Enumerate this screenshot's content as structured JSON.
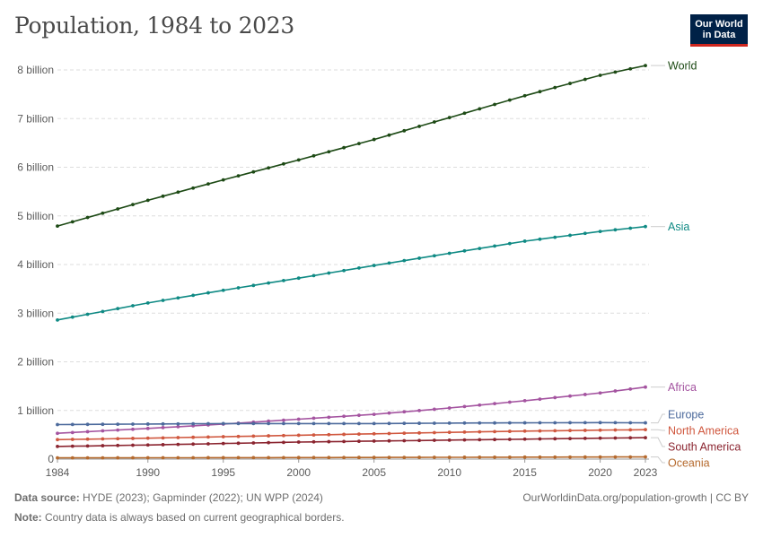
{
  "header": {
    "title": "Population, 1984 to 2023",
    "logo_line1": "Our World",
    "logo_line2": "in Data"
  },
  "footer": {
    "source_label": "Data source:",
    "source_text": "HYDE (2023); Gapminder (2022); UN WPP (2024)",
    "note_label": "Note:",
    "note_text": "Country data is always based on current geographical borders.",
    "link_text": "OurWorldinData.org/population-growth | CC BY"
  },
  "chart_data": {
    "type": "line",
    "title": "Population, 1984 to 2023",
    "xlabel": "",
    "ylabel": "",
    "xlim": [
      1984,
      2023
    ],
    "ylim": [
      0,
      8000000000
    ],
    "x_ticks": [
      1984,
      1990,
      1995,
      2000,
      2005,
      2010,
      2015,
      2020,
      2023
    ],
    "y_ticks": [
      {
        "value": 0,
        "label": "0"
      },
      {
        "value": 1000000000,
        "label": "1 billion"
      },
      {
        "value": 2000000000,
        "label": "2 billion"
      },
      {
        "value": 3000000000,
        "label": "3 billion"
      },
      {
        "value": 4000000000,
        "label": "4 billion"
      },
      {
        "value": 5000000000,
        "label": "5 billion"
      },
      {
        "value": 6000000000,
        "label": "6 billion"
      },
      {
        "value": 7000000000,
        "label": "7 billion"
      },
      {
        "value": 8000000000,
        "label": "8 billion"
      }
    ],
    "grid": true,
    "series": [
      {
        "name": "World",
        "color": "#1d4a15",
        "anchors": [
          [
            1984,
            4790000000.0
          ],
          [
            1990,
            5320000000.0
          ],
          [
            1995,
            5740000000.0
          ],
          [
            2000,
            6150000000.0
          ],
          [
            2005,
            6570000000.0
          ],
          [
            2010,
            7020000000.0
          ],
          [
            2015,
            7470000000.0
          ],
          [
            2020,
            7890000000.0
          ],
          [
            2023,
            8090000000.0
          ]
        ]
      },
      {
        "name": "Asia",
        "color": "#0f8a84",
        "anchors": [
          [
            1984,
            2860000000.0
          ],
          [
            1990,
            3210000000.0
          ],
          [
            1995,
            3470000000.0
          ],
          [
            2000,
            3720000000.0
          ],
          [
            2005,
            3980000000.0
          ],
          [
            2010,
            4230000000.0
          ],
          [
            2015,
            4480000000.0
          ],
          [
            2020,
            4680000000.0
          ],
          [
            2023,
            4780000000.0
          ]
        ]
      },
      {
        "name": "Africa",
        "color": "#a454a0",
        "anchors": [
          [
            1984,
            530000000.0
          ],
          [
            1990,
            630000000.0
          ],
          [
            1995,
            720000000.0
          ],
          [
            2000,
            820000000.0
          ],
          [
            2005,
            920000000.0
          ],
          [
            2010,
            1050000000.0
          ],
          [
            2015,
            1200000000.0
          ],
          [
            2020,
            1360000000.0
          ],
          [
            2023,
            1480000000.0
          ]
        ]
      },
      {
        "name": "Europe",
        "color": "#4c6a9c",
        "anchors": [
          [
            1984,
            710000000.0
          ],
          [
            1990,
            720000000.0
          ],
          [
            1995,
            730000000.0
          ],
          [
            2000,
            730000000.0
          ],
          [
            2005,
            730000000.0
          ],
          [
            2010,
            740000000.0
          ],
          [
            2015,
            745000000.0
          ],
          [
            2020,
            750000000.0
          ],
          [
            2023,
            745000000.0
          ]
        ]
      },
      {
        "name": "North America",
        "color": "#d0583f",
        "anchors": [
          [
            1984,
            400000000.0
          ],
          [
            1990,
            430000000.0
          ],
          [
            1995,
            460000000.0
          ],
          [
            2000,
            490000000.0
          ],
          [
            2005,
            520000000.0
          ],
          [
            2010,
            550000000.0
          ],
          [
            2015,
            575000000.0
          ],
          [
            2020,
            595000000.0
          ],
          [
            2023,
            605000000.0
          ]
        ]
      },
      {
        "name": "South America",
        "color": "#8b2530",
        "anchors": [
          [
            1984,
            260000000.0
          ],
          [
            1990,
            290000000.0
          ],
          [
            1995,
            320000000.0
          ],
          [
            2000,
            350000000.0
          ],
          [
            2005,
            370000000.0
          ],
          [
            2010,
            390000000.0
          ],
          [
            2015,
            410000000.0
          ],
          [
            2020,
            430000000.0
          ],
          [
            2023,
            440000000.0
          ]
        ]
      },
      {
        "name": "Oceania",
        "color": "#b56a2e",
        "anchors": [
          [
            1984,
            25000000.0
          ],
          [
            1990,
            27000000.0
          ],
          [
            1995,
            29000000.0
          ],
          [
            2000,
            31000000.0
          ],
          [
            2005,
            34000000.0
          ],
          [
            2010,
            37000000.0
          ],
          [
            2015,
            40000000.0
          ],
          [
            2020,
            43000000.0
          ],
          [
            2023,
            45000000.0
          ]
        ]
      }
    ],
    "series_label_order": [
      "World",
      "Asia",
      "Africa",
      "Europe",
      "North America",
      "South America",
      "Oceania"
    ]
  }
}
